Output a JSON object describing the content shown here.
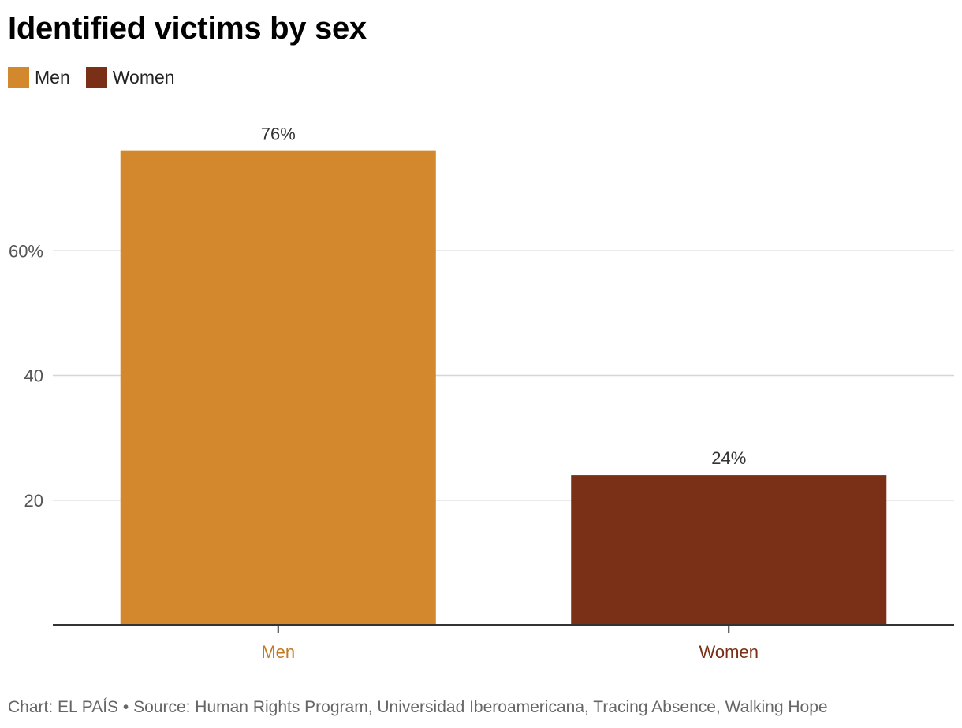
{
  "chart_data": {
    "type": "bar",
    "title": "Identified victims by sex",
    "categories": [
      "Men",
      "Women"
    ],
    "values": [
      76,
      24
    ],
    "data_labels": [
      "76%",
      "24%"
    ],
    "colors": [
      "#d4882d",
      "#7a3017"
    ],
    "category_label_colors": [
      "#c27a22",
      "#7a3017"
    ],
    "ylim": [
      0,
      80
    ],
    "y_ticks": [
      20,
      40,
      60
    ],
    "y_tick_labels": [
      "20",
      "40",
      "60%"
    ],
    "xlabel": "",
    "ylabel": "",
    "grid": true,
    "legend": {
      "position": "top-left",
      "items": [
        {
          "label": "Men",
          "color": "#d4882d"
        },
        {
          "label": "Women",
          "color": "#7a3017"
        }
      ]
    }
  },
  "footer": {
    "credit": "Chart: EL PAÍS • Source: Human Rights Program, Universidad Iberoamericana, Tracing Absence, Walking Hope"
  }
}
